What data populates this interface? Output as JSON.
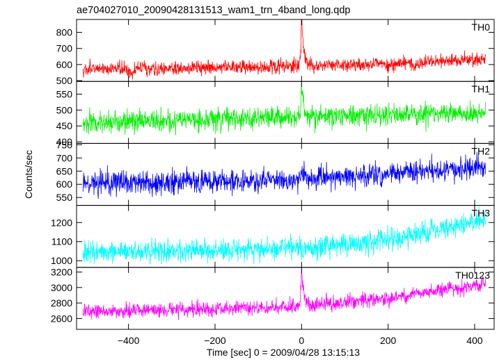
{
  "chart_data": {
    "type": "line",
    "title": "ae704027010_20090428131513_wam1_trn_4band_long.qdp",
    "xlabel": "Time [sec] 0 = 2009/04/28 13:15:13",
    "ylabel": "Counts/sec",
    "xlim": [
      -520,
      445
    ],
    "x_data_range": [
      -505,
      425
    ],
    "grid": false,
    "legend": "none",
    "x_ticks": [
      -400,
      -200,
      0,
      200,
      400
    ],
    "x_tick_labels": [
      "−400",
      "−200",
      "0",
      "200",
      "400"
    ],
    "panels": [
      {
        "name": "TH0",
        "color": "#ff0000",
        "ylim": [
          495,
          880
        ],
        "y_ticks": [
          500,
          600,
          700,
          800
        ],
        "y_tick_labels": [
          "500",
          "600",
          "700",
          "800"
        ],
        "baseline": [
          [
            -505,
            570
          ],
          [
            -200,
            580
          ],
          [
            0,
            590
          ],
          [
            200,
            600
          ],
          [
            425,
            635
          ]
        ],
        "noise": 30,
        "dip": {
          "x": -395,
          "depth": 40
        },
        "peak": {
          "x": 0,
          "height": 300
        }
      },
      {
        "name": "TH1",
        "color": "#00ee00",
        "ylim": [
          395,
          590
        ],
        "y_ticks": [
          400,
          450,
          500,
          550
        ],
        "y_tick_labels": [
          "400",
          "450",
          "500",
          "550"
        ],
        "baseline": [
          [
            -505,
            460
          ],
          [
            -200,
            470
          ],
          [
            0,
            478
          ],
          [
            200,
            485
          ],
          [
            425,
            495
          ]
        ],
        "noise": 24,
        "dip": null,
        "peak": {
          "x": 0,
          "height": 90
        }
      },
      {
        "name": "TH2",
        "color": "#0000ff",
        "ylim": [
          520,
          755
        ],
        "y_ticks": [
          550,
          600,
          650,
          700,
          750
        ],
        "y_tick_labels": [
          "550",
          "600",
          "650",
          "700",
          "750"
        ],
        "baseline": [
          [
            -505,
            605
          ],
          [
            -200,
            610
          ],
          [
            0,
            620
          ],
          [
            200,
            640
          ],
          [
            425,
            665
          ]
        ],
        "noise": 30,
        "dip": null,
        "peak": {
          "x": 0,
          "height": 45
        }
      },
      {
        "name": "TH3",
        "color": "#00ffff",
        "ylim": [
          965,
          1290
        ],
        "y_ticks": [
          1000,
          1100,
          1200
        ],
        "y_tick_labels": [
          "1000",
          "1100",
          "1200"
        ],
        "baseline": [
          [
            -505,
            1045
          ],
          [
            -200,
            1055
          ],
          [
            0,
            1065
          ],
          [
            200,
            1110
          ],
          [
            425,
            1210
          ]
        ],
        "noise": 40,
        "dip": null,
        "peak": {
          "x": 0,
          "height": 0
        }
      },
      {
        "name": "TH0123",
        "color": "#ff00ff",
        "ylim": [
          2460,
          3260
        ],
        "y_ticks": [
          2600,
          2800,
          3000,
          3200
        ],
        "y_tick_labels": [
          "2600",
          "2800",
          "3000",
          "3200"
        ],
        "baseline": [
          [
            -505,
            2690
          ],
          [
            -200,
            2720
          ],
          [
            0,
            2760
          ],
          [
            200,
            2860
          ],
          [
            425,
            3050
          ]
        ],
        "noise": 65,
        "dip": null,
        "peak": {
          "x": 0,
          "height": 480
        }
      }
    ]
  }
}
